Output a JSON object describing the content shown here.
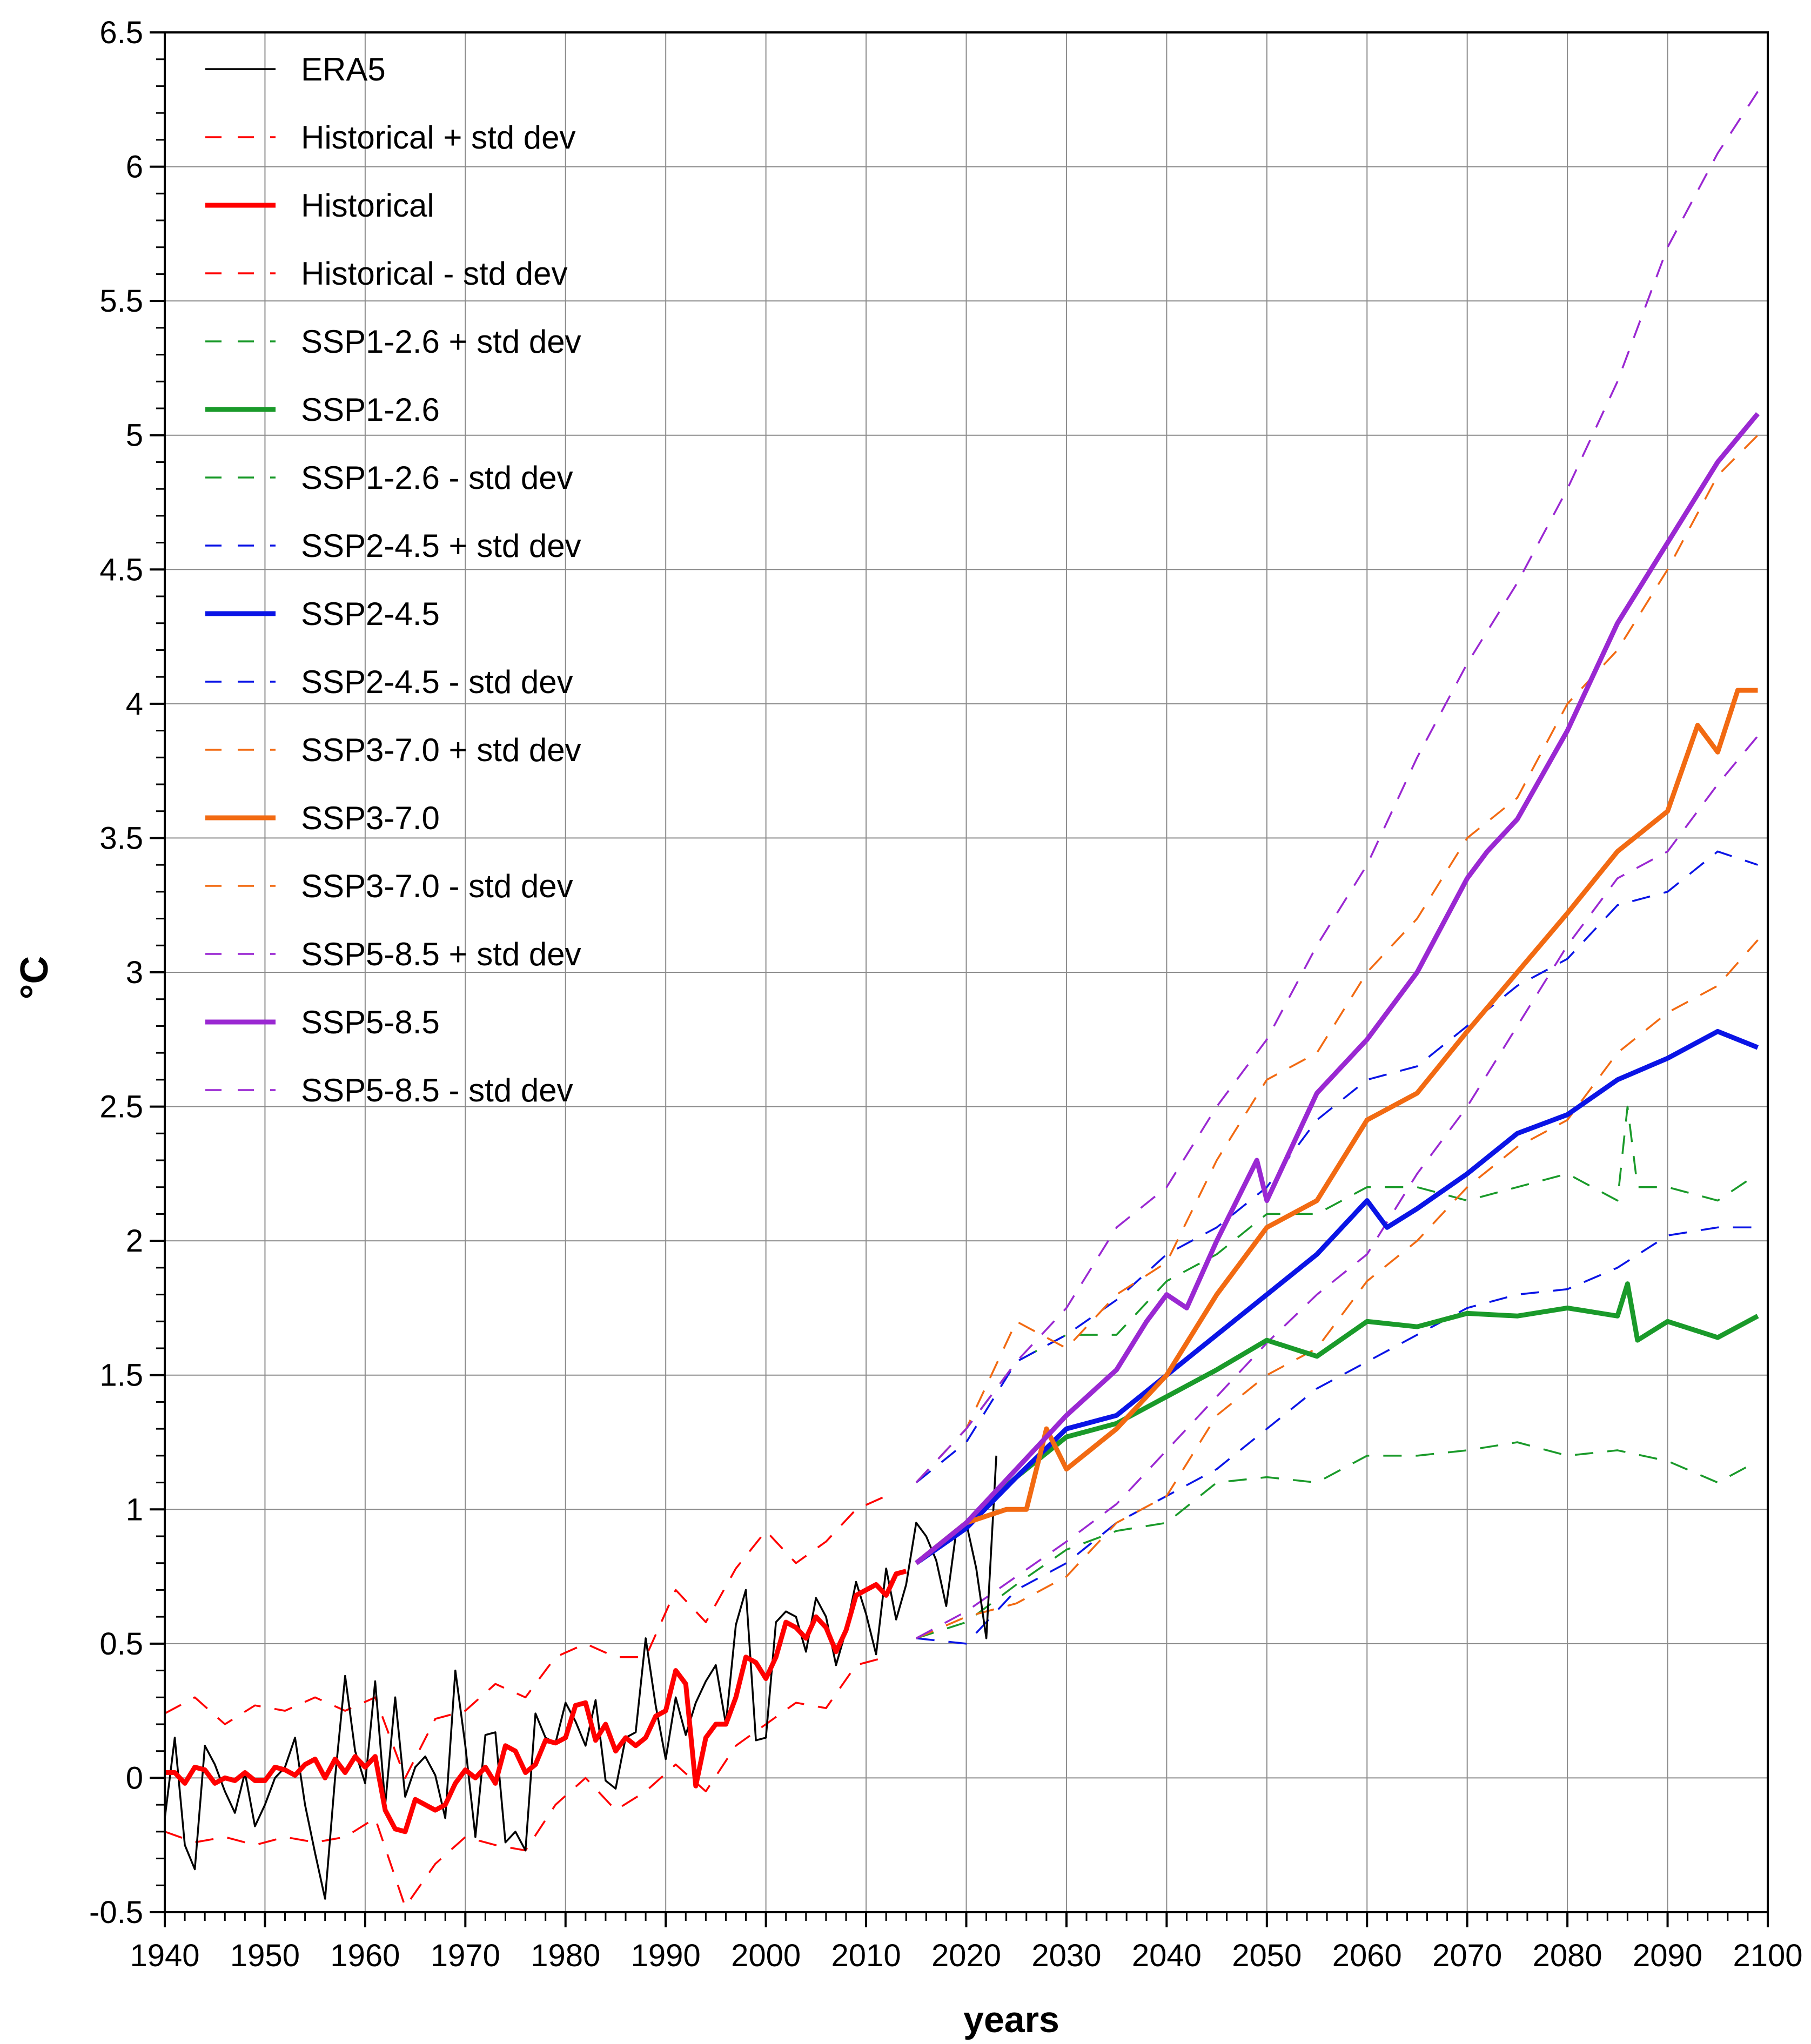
{
  "chart_data": {
    "type": "line",
    "title": "",
    "xlabel": "years",
    "ylabel": "°C",
    "xlim": [
      1940,
      2100
    ],
    "ylim": [
      -0.5,
      6.5
    ],
    "grid": true,
    "legend_position": "top-left",
    "x_ticks": [
      "1940",
      "1950",
      "1960",
      "1970",
      "1980",
      "1990",
      "2000",
      "2010",
      "2020",
      "2030",
      "2040",
      "2050",
      "2060",
      "2070",
      "2080",
      "2090",
      "2100"
    ],
    "y_ticks": [
      "-0.5",
      "0",
      "0.5",
      "1",
      "1.5",
      "2",
      "2.5",
      "3",
      "3.5",
      "4",
      "4.5",
      "5",
      "5.5",
      "6",
      "6.5"
    ],
    "colors": {
      "era5": "#000000",
      "historical": "#ff0000",
      "ssp126": "#1a9a2a",
      "ssp245": "#0a14e6",
      "ssp370": "#f26a12",
      "ssp585": "#9a28d2"
    },
    "legend": [
      {
        "label": "ERA5",
        "series": "era5",
        "style": "thin"
      },
      {
        "label": "Historical + std dev",
        "series": "historical",
        "style": "dashed"
      },
      {
        "label": "Historical",
        "series": "historical",
        "style": "thick"
      },
      {
        "label": "Historical - std dev",
        "series": "historical",
        "style": "dashed"
      },
      {
        "label": "SSP1-2.6 + std dev",
        "series": "ssp126",
        "style": "dashed"
      },
      {
        "label": "SSP1-2.6",
        "series": "ssp126",
        "style": "thick"
      },
      {
        "label": "SSP1-2.6 - std dev",
        "series": "ssp126",
        "style": "dashed"
      },
      {
        "label": "SSP2-4.5 + std dev",
        "series": "ssp245",
        "style": "dashed"
      },
      {
        "label": "SSP2-4.5",
        "series": "ssp245",
        "style": "thick"
      },
      {
        "label": "SSP2-4.5 - std dev",
        "series": "ssp245",
        "style": "dashed"
      },
      {
        "label": "SSP3-7.0 + std dev",
        "series": "ssp370",
        "style": "dashed"
      },
      {
        "label": "SSP3-7.0",
        "series": "ssp370",
        "style": "thick"
      },
      {
        "label": "SSP3-7.0 - std dev",
        "series": "ssp370",
        "style": "dashed"
      },
      {
        "label": "SSP5-8.5 + std dev",
        "series": "ssp585",
        "style": "dashed"
      },
      {
        "label": "SSP5-8.5",
        "series": "ssp585",
        "style": "thick"
      },
      {
        "label": "SSP5-8.5 - std dev",
        "series": "ssp585",
        "style": "dashed"
      }
    ],
    "series": [
      {
        "name": "ERA5",
        "style": "thin",
        "color_key": "era5",
        "x": [
          1940,
          1941,
          1942,
          1943,
          1944,
          1945,
          1946,
          1947,
          1948,
          1949,
          1950,
          1951,
          1952,
          1953,
          1954,
          1955,
          1956,
          1957,
          1958,
          1959,
          1960,
          1961,
          1962,
          1963,
          1964,
          1965,
          1966,
          1967,
          1968,
          1969,
          1970,
          1971,
          1972,
          1973,
          1974,
          1975,
          1976,
          1977,
          1978,
          1979,
          1980,
          1981,
          1982,
          1983,
          1984,
          1985,
          1986,
          1987,
          1988,
          1989,
          1990,
          1991,
          1992,
          1993,
          1994,
          1995,
          1996,
          1997,
          1998,
          1999,
          2000,
          2001,
          2002,
          2003,
          2004,
          2005,
          2006,
          2007,
          2008,
          2009,
          2010,
          2011,
          2012,
          2013,
          2014,
          2015,
          2016,
          2017,
          2018,
          2019,
          2020,
          2021,
          2022,
          2023
        ],
        "y": [
          -0.15,
          0.15,
          -0.25,
          -0.34,
          0.12,
          0.05,
          -0.05,
          -0.13,
          0.02,
          -0.18,
          -0.1,
          0.0,
          0.04,
          0.15,
          -0.1,
          -0.28,
          -0.45,
          0.0,
          0.38,
          0.1,
          -0.02,
          0.36,
          -0.1,
          0.3,
          -0.07,
          0.04,
          0.08,
          0.01,
          -0.15,
          0.4,
          0.12,
          -0.22,
          0.16,
          0.17,
          -0.24,
          -0.2,
          -0.27,
          0.24,
          0.15,
          0.13,
          0.28,
          0.21,
          0.12,
          0.29,
          -0.01,
          -0.04,
          0.15,
          0.17,
          0.52,
          0.27,
          0.07,
          0.3,
          0.16,
          0.28,
          0.36,
          0.42,
          0.2,
          0.57,
          0.7,
          0.14,
          0.15,
          0.58,
          0.62,
          0.6,
          0.47,
          0.67,
          0.6,
          0.42,
          0.55,
          0.73,
          0.61,
          0.46,
          0.78,
          0.59,
          0.72,
          0.95,
          0.9,
          0.81,
          0.64,
          0.92,
          0.95,
          0.78,
          0.52,
          1.2
        ]
      },
      {
        "name": "Historical",
        "style": "thick",
        "color_key": "historical",
        "x": [
          1940,
          1941,
          1942,
          1943,
          1944,
          1945,
          1946,
          1947,
          1948,
          1949,
          1950,
          1951,
          1952,
          1953,
          1954,
          1955,
          1956,
          1957,
          1958,
          1959,
          1960,
          1961,
          1962,
          1963,
          1964,
          1965,
          1966,
          1967,
          1968,
          1969,
          1970,
          1971,
          1972,
          1973,
          1974,
          1975,
          1976,
          1977,
          1978,
          1979,
          1980,
          1981,
          1982,
          1983,
          1984,
          1985,
          1986,
          1987,
          1988,
          1989,
          1990,
          1991,
          1992,
          1993,
          1994,
          1995,
          1996,
          1997,
          1998,
          1999,
          2000,
          2001,
          2002,
          2003,
          2004,
          2005,
          2006,
          2007,
          2008,
          2009,
          2010,
          2011,
          2012,
          2013,
          2014
        ],
        "y": [
          0.02,
          0.02,
          -0.02,
          0.04,
          0.03,
          -0.02,
          0.0,
          -0.01,
          0.02,
          -0.01,
          -0.01,
          0.04,
          0.03,
          0.01,
          0.05,
          0.07,
          0.0,
          0.07,
          0.02,
          0.08,
          0.04,
          0.08,
          -0.12,
          -0.19,
          -0.2,
          -0.08,
          -0.1,
          -0.12,
          -0.1,
          -0.02,
          0.03,
          0.0,
          0.04,
          -0.02,
          0.12,
          0.1,
          0.02,
          0.05,
          0.14,
          0.13,
          0.15,
          0.27,
          0.28,
          0.14,
          0.2,
          0.1,
          0.15,
          0.12,
          0.15,
          0.23,
          0.25,
          0.4,
          0.35,
          -0.03,
          0.15,
          0.2,
          0.2,
          0.3,
          0.45,
          0.43,
          0.37,
          0.45,
          0.58,
          0.56,
          0.52,
          0.6,
          0.56,
          0.47,
          0.55,
          0.68,
          0.7,
          0.72,
          0.68,
          0.76,
          0.77
        ]
      },
      {
        "name": "Historical + std dev",
        "style": "dashed",
        "color_key": "historical",
        "x": [
          1940,
          1943,
          1946,
          1949,
          1952,
          1955,
          1958,
          1961,
          1964,
          1967,
          1970,
          1973,
          1976,
          1979,
          1982,
          1985,
          1988,
          1991,
          1994,
          1997,
          2000,
          2003,
          2006,
          2009,
          2012
        ],
        "y": [
          0.24,
          0.3,
          0.2,
          0.27,
          0.25,
          0.3,
          0.25,
          0.3,
          0.0,
          0.22,
          0.25,
          0.35,
          0.3,
          0.45,
          0.5,
          0.45,
          0.45,
          0.7,
          0.58,
          0.78,
          0.92,
          0.8,
          0.88,
          1.0,
          1.05
        ]
      },
      {
        "name": "Historical - std dev",
        "style": "dashed",
        "color_key": "historical",
        "x": [
          1940,
          1943,
          1946,
          1949,
          1952,
          1955,
          1958,
          1961,
          1964,
          1967,
          1970,
          1973,
          1976,
          1979,
          1982,
          1985,
          1988,
          1991,
          1994,
          1997,
          2000,
          2003,
          2006,
          2009,
          2012
        ],
        "y": [
          -0.2,
          -0.24,
          -0.22,
          -0.25,
          -0.22,
          -0.24,
          -0.22,
          -0.15,
          -0.48,
          -0.32,
          -0.22,
          -0.25,
          -0.27,
          -0.1,
          0.0,
          -0.12,
          -0.05,
          0.05,
          -0.05,
          0.12,
          0.2,
          0.28,
          0.26,
          0.42,
          0.45
        ]
      },
      {
        "name": "SSP1-2.6",
        "style": "thick",
        "color_key": "ssp126",
        "x": [
          2015,
          2020,
          2025,
          2030,
          2035,
          2040,
          2045,
          2050,
          2055,
          2060,
          2065,
          2070,
          2075,
          2080,
          2085,
          2086,
          2087,
          2090,
          2095,
          2099
        ],
        "y": [
          0.8,
          0.95,
          1.12,
          1.27,
          1.32,
          1.42,
          1.52,
          1.63,
          1.57,
          1.7,
          1.68,
          1.73,
          1.72,
          1.75,
          1.72,
          1.84,
          1.63,
          1.7,
          1.64,
          1.72
        ]
      },
      {
        "name": "SSP1-2.6 + std dev",
        "style": "dashed",
        "color_key": "ssp126",
        "x": [
          2015,
          2020,
          2025,
          2030,
          2035,
          2040,
          2045,
          2050,
          2055,
          2060,
          2065,
          2070,
          2075,
          2080,
          2085,
          2086,
          2087,
          2090,
          2095,
          2099
        ],
        "y": [
          1.1,
          1.3,
          1.55,
          1.65,
          1.65,
          1.85,
          1.95,
          2.1,
          2.1,
          2.2,
          2.2,
          2.15,
          2.2,
          2.25,
          2.15,
          2.5,
          2.2,
          2.2,
          2.15,
          2.25
        ]
      },
      {
        "name": "SSP1-2.6 - std dev",
        "style": "dashed",
        "color_key": "ssp126",
        "x": [
          2015,
          2020,
          2025,
          2030,
          2035,
          2040,
          2045,
          2050,
          2055,
          2060,
          2065,
          2070,
          2075,
          2080,
          2085,
          2090,
          2095,
          2099
        ],
        "y": [
          0.52,
          0.58,
          0.72,
          0.85,
          0.92,
          0.95,
          1.1,
          1.12,
          1.1,
          1.2,
          1.2,
          1.22,
          1.25,
          1.2,
          1.22,
          1.18,
          1.1,
          1.18
        ]
      },
      {
        "name": "SSP2-4.5",
        "style": "thick",
        "color_key": "ssp245",
        "x": [
          2015,
          2020,
          2025,
          2030,
          2035,
          2040,
          2045,
          2050,
          2055,
          2060,
          2062,
          2065,
          2070,
          2075,
          2080,
          2085,
          2090,
          2095,
          2099
        ],
        "y": [
          0.8,
          0.93,
          1.12,
          1.3,
          1.35,
          1.5,
          1.65,
          1.8,
          1.95,
          2.15,
          2.05,
          2.12,
          2.25,
          2.4,
          2.47,
          2.6,
          2.68,
          2.78,
          2.72
        ]
      },
      {
        "name": "SSP2-4.5 + std dev",
        "style": "dashed",
        "color_key": "ssp245",
        "x": [
          2015,
          2020,
          2025,
          2030,
          2035,
          2040,
          2045,
          2050,
          2055,
          2060,
          2065,
          2070,
          2075,
          2080,
          2085,
          2090,
          2095,
          2099
        ],
        "y": [
          1.1,
          1.25,
          1.55,
          1.65,
          1.78,
          1.95,
          2.05,
          2.2,
          2.45,
          2.6,
          2.65,
          2.8,
          2.95,
          3.05,
          3.25,
          3.3,
          3.45,
          3.4
        ]
      },
      {
        "name": "SSP2-4.5 - std dev",
        "style": "dashed",
        "color_key": "ssp245",
        "x": [
          2015,
          2020,
          2025,
          2030,
          2035,
          2040,
          2045,
          2050,
          2055,
          2060,
          2065,
          2070,
          2075,
          2080,
          2085,
          2090,
          2095,
          2099
        ],
        "y": [
          0.52,
          0.5,
          0.7,
          0.8,
          0.95,
          1.05,
          1.15,
          1.3,
          1.45,
          1.55,
          1.65,
          1.75,
          1.8,
          1.82,
          1.9,
          2.02,
          2.05,
          2.05
        ]
      },
      {
        "name": "SSP3-7.0",
        "style": "thick",
        "color_key": "ssp370",
        "x": [
          2015,
          2020,
          2024,
          2026,
          2028,
          2030,
          2035,
          2040,
          2045,
          2050,
          2055,
          2060,
          2065,
          2070,
          2075,
          2080,
          2085,
          2090,
          2093,
          2095,
          2097,
          2099
        ],
        "y": [
          0.8,
          0.95,
          1.0,
          1.0,
          1.3,
          1.15,
          1.3,
          1.5,
          1.8,
          2.05,
          2.15,
          2.45,
          2.55,
          2.78,
          3.0,
          3.22,
          3.45,
          3.6,
          3.92,
          3.82,
          4.05,
          4.05
        ]
      },
      {
        "name": "SSP3-7.0 + std dev",
        "style": "dashed",
        "color_key": "ssp370",
        "x": [
          2015,
          2020,
          2025,
          2030,
          2035,
          2040,
          2045,
          2050,
          2055,
          2060,
          2065,
          2070,
          2075,
          2080,
          2085,
          2090,
          2095,
          2099
        ],
        "y": [
          1.1,
          1.3,
          1.7,
          1.6,
          1.8,
          1.92,
          2.3,
          2.6,
          2.7,
          3.0,
          3.2,
          3.5,
          3.65,
          4.0,
          4.2,
          4.5,
          4.85,
          5.0
        ]
      },
      {
        "name": "SSP3-7.0 - std dev",
        "style": "dashed",
        "color_key": "ssp370",
        "x": [
          2015,
          2020,
          2025,
          2030,
          2035,
          2040,
          2045,
          2050,
          2055,
          2060,
          2065,
          2070,
          2075,
          2080,
          2085,
          2090,
          2095,
          2099
        ],
        "y": [
          0.52,
          0.6,
          0.65,
          0.75,
          0.95,
          1.05,
          1.35,
          1.5,
          1.6,
          1.85,
          2.0,
          2.2,
          2.35,
          2.45,
          2.7,
          2.85,
          2.95,
          3.12
        ]
      },
      {
        "name": "SSP5-8.5",
        "style": "thick",
        "color_key": "ssp585",
        "x": [
          2015,
          2020,
          2025,
          2030,
          2035,
          2038,
          2040,
          2042,
          2045,
          2049,
          2050,
          2055,
          2060,
          2065,
          2070,
          2072,
          2075,
          2080,
          2085,
          2090,
          2095,
          2099
        ],
        "y": [
          0.8,
          0.95,
          1.15,
          1.35,
          1.52,
          1.7,
          1.8,
          1.75,
          2.0,
          2.3,
          2.15,
          2.55,
          2.75,
          3.0,
          3.35,
          3.45,
          3.57,
          3.9,
          4.3,
          4.6,
          4.9,
          5.08
        ]
      },
      {
        "name": "SSP5-8.5 + std dev",
        "style": "dashed",
        "color_key": "ssp585",
        "x": [
          2015,
          2020,
          2025,
          2030,
          2035,
          2040,
          2045,
          2050,
          2055,
          2060,
          2065,
          2070,
          2075,
          2080,
          2085,
          2090,
          2095,
          2099
        ],
        "y": [
          1.1,
          1.3,
          1.55,
          1.75,
          2.05,
          2.2,
          2.5,
          2.75,
          3.1,
          3.4,
          3.8,
          4.15,
          4.45,
          4.8,
          5.2,
          5.7,
          6.05,
          6.28
        ]
      },
      {
        "name": "SSP5-8.5 - std dev",
        "style": "dashed",
        "color_key": "ssp585",
        "x": [
          2015,
          2020,
          2025,
          2030,
          2035,
          2040,
          2045,
          2050,
          2055,
          2060,
          2065,
          2070,
          2075,
          2080,
          2085,
          2090,
          2095,
          2099
        ],
        "y": [
          0.52,
          0.62,
          0.75,
          0.88,
          1.02,
          1.22,
          1.42,
          1.62,
          1.8,
          1.95,
          2.25,
          2.5,
          2.8,
          3.1,
          3.35,
          3.45,
          3.7,
          3.88
        ]
      }
    ]
  }
}
